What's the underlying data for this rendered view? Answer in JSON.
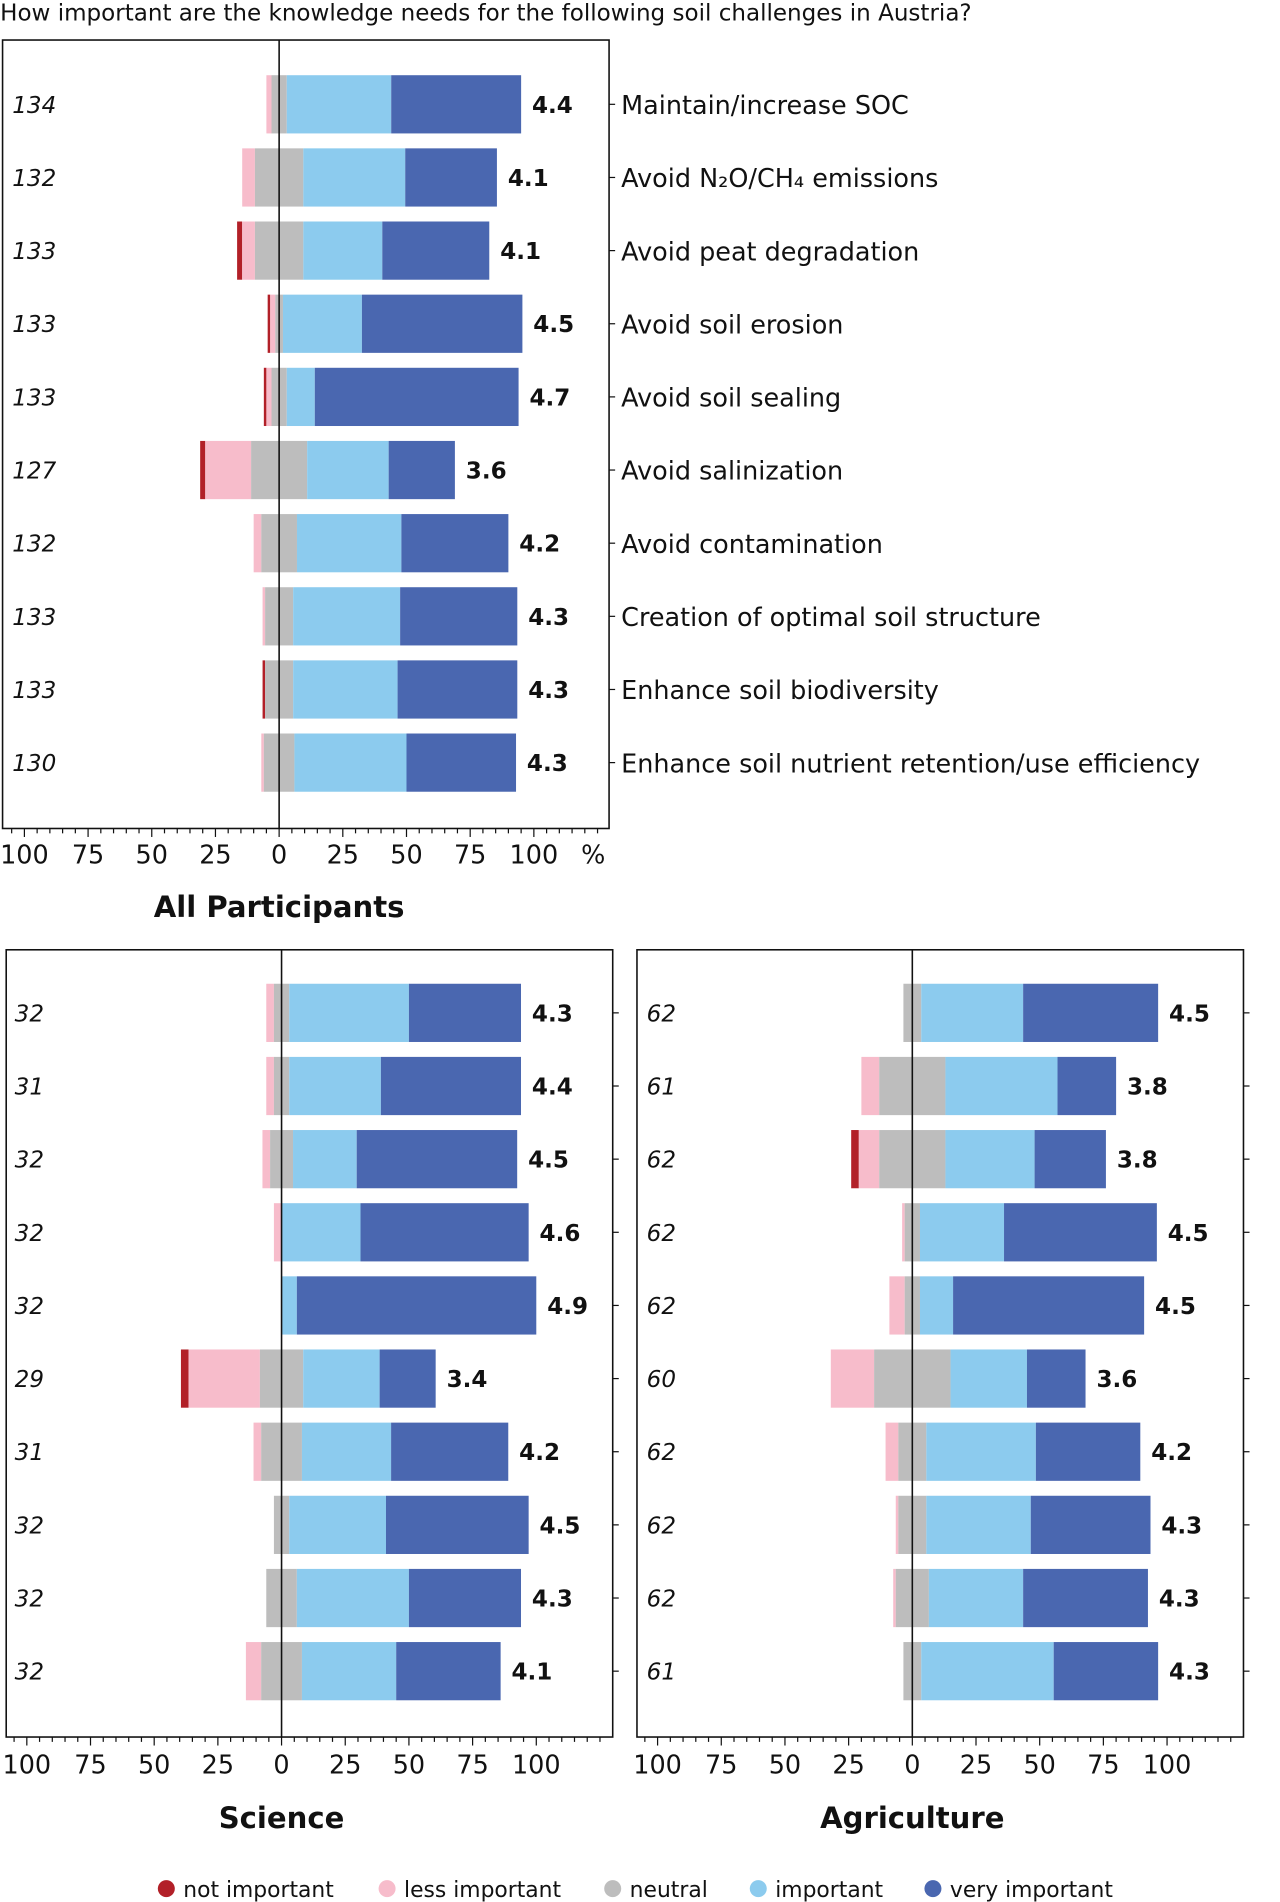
{
  "title": "How important are the knowledge needs for the following soil challenges in Austria?",
  "colors": {
    "not important": "#b22028",
    "less important": "#f7bccb",
    "neutral": "#bdbdbd",
    "important": "#8ccbee",
    "very important": "#4a67b0"
  },
  "legend": [
    "not important",
    "less important",
    "neutral",
    "important",
    "very important"
  ],
  "chart_data": [
    {
      "type": "bar",
      "subtype": "diverging-stacked-horizontal",
      "title": "All Participants",
      "xlabel": "%",
      "xlim": [
        -100,
        100
      ],
      "xticks": [
        "100",
        "75",
        "50",
        "25",
        "0",
        "25",
        "50",
        "75",
        "100"
      ],
      "categories": [
        "Maintain/increase SOC",
        "Avoid N₂O/CH₄ emissions",
        "Avoid peat degradation",
        "Avoid soil erosion",
        "Avoid soil sealing",
        "Avoid salinization",
        "Avoid contamination",
        "Creation of optimal soil structure",
        "Enhance soil biodiversity",
        "Enhance soil nutrient retention/use efficiency"
      ],
      "n": [
        "134",
        "132",
        "133",
        "133",
        "133",
        "127",
        "132",
        "133",
        "133",
        "130"
      ],
      "mean": [
        "4.4",
        "4.1",
        "4.1",
        "4.5",
        "4.7",
        "3.6",
        "4.2",
        "4.3",
        "4.3",
        "4.3"
      ],
      "series": [
        {
          "name": "not important",
          "values": [
            0,
            0,
            2,
            1,
            1,
            2,
            0,
            0,
            1,
            0
          ]
        },
        {
          "name": "less important",
          "values": [
            2,
            5,
            5,
            2,
            2,
            18,
            3,
            1,
            0,
            1
          ]
        },
        {
          "name": "neutral",
          "values": [
            6,
            19,
            19,
            3,
            6,
            22,
            14,
            11,
            11,
            12
          ]
        },
        {
          "name": "important",
          "values": [
            41,
            40,
            31,
            31,
            11,
            32,
            41,
            42,
            41,
            44
          ]
        },
        {
          "name": "very important",
          "values": [
            51,
            36,
            42,
            63,
            80,
            26,
            42,
            46,
            47,
            43
          ]
        }
      ]
    },
    {
      "type": "bar",
      "subtype": "diverging-stacked-horizontal",
      "title": "Science",
      "xlim": [
        -100,
        100
      ],
      "xticks": [
        "100",
        "75",
        "50",
        "25",
        "0",
        "25",
        "50",
        "75",
        "100"
      ],
      "n": [
        "32",
        "31",
        "32",
        "32",
        "32",
        "29",
        "31",
        "32",
        "32",
        "32"
      ],
      "mean": [
        "4.3",
        "4.4",
        "4.5",
        "4.6",
        "4.9",
        "3.4",
        "4.2",
        "4.5",
        "4.3",
        "4.1"
      ],
      "series": [
        {
          "name": "not important",
          "values": [
            0,
            0,
            0,
            0,
            0,
            3,
            0,
            0,
            0,
            0
          ]
        },
        {
          "name": "less important",
          "values": [
            3,
            3,
            3,
            3,
            0,
            28,
            3,
            0,
            0,
            6
          ]
        },
        {
          "name": "neutral",
          "values": [
            6,
            6,
            9,
            0,
            0,
            17,
            16,
            6,
            12,
            16
          ]
        },
        {
          "name": "important",
          "values": [
            47,
            36,
            25,
            31,
            6,
            30,
            35,
            38,
            44,
            37
          ]
        },
        {
          "name": "very important",
          "values": [
            44,
            55,
            63,
            66,
            94,
            22,
            46,
            56,
            44,
            41
          ]
        }
      ]
    },
    {
      "type": "bar",
      "subtype": "diverging-stacked-horizontal",
      "title": "Agriculture",
      "xlim": [
        -100,
        100
      ],
      "xticks": [
        "100",
        "75",
        "50",
        "25",
        "0",
        "25",
        "50",
        "75",
        "100"
      ],
      "n": [
        "62",
        "61",
        "62",
        "62",
        "62",
        "60",
        "62",
        "62",
        "62",
        "61"
      ],
      "mean": [
        "4.5",
        "3.8",
        "3.8",
        "4.5",
        "4.5",
        "3.6",
        "4.2",
        "4.3",
        "4.3",
        "4.3"
      ],
      "series": [
        {
          "name": "not important",
          "values": [
            0,
            0,
            3,
            0,
            0,
            0,
            0,
            0,
            0,
            0
          ]
        },
        {
          "name": "less important",
          "values": [
            0,
            7,
            8,
            1,
            6,
            17,
            5,
            1,
            1,
            0
          ]
        },
        {
          "name": "neutral",
          "values": [
            7,
            26,
            26,
            6,
            6,
            30,
            11,
            11,
            13,
            7
          ]
        },
        {
          "name": "important",
          "values": [
            40,
            44,
            35,
            33,
            13,
            30,
            43,
            41,
            37,
            52
          ]
        },
        {
          "name": "very important",
          "values": [
            53,
            23,
            28,
            60,
            75,
            23,
            41,
            47,
            49,
            41
          ]
        }
      ]
    }
  ]
}
